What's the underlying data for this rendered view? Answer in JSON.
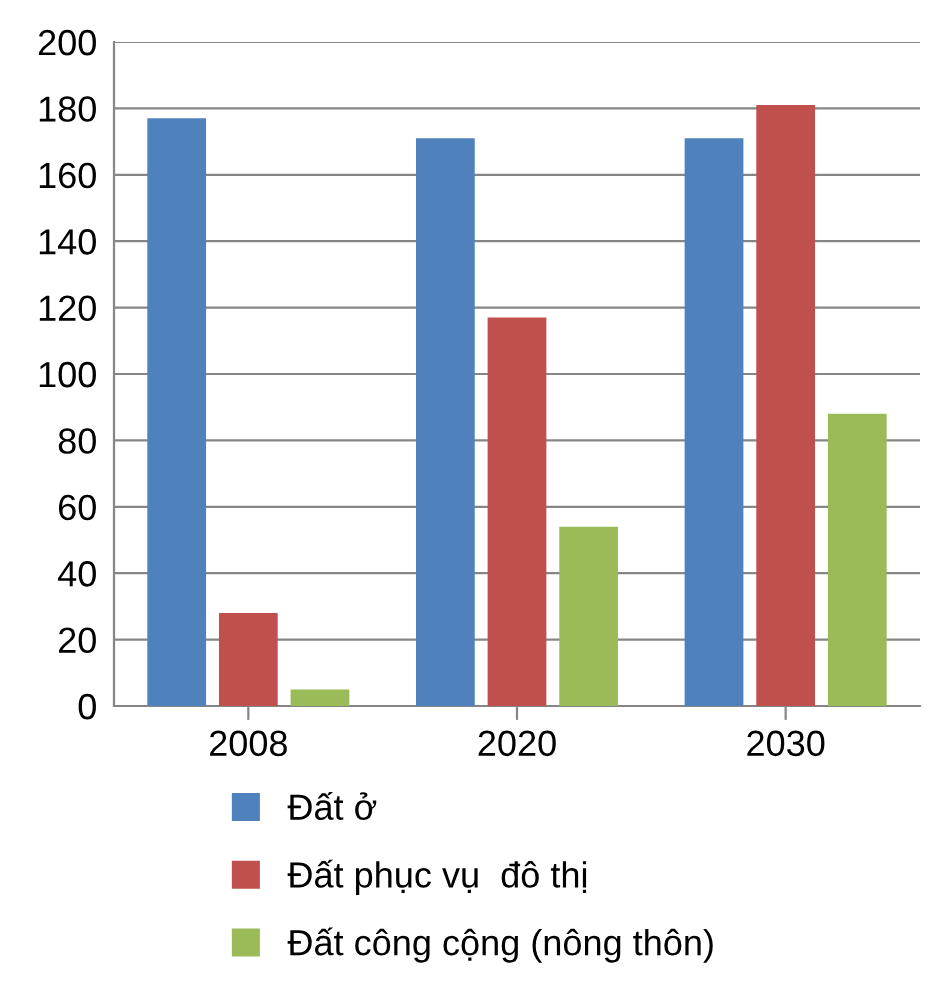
{
  "chart_data": {
    "type": "bar",
    "categories": [
      "2008",
      "2020",
      "2030"
    ],
    "series": [
      {
        "name": "Đất ở",
        "color": "#4f81bd",
        "values": [
          177,
          171,
          171
        ]
      },
      {
        "name": "Đất phục vụ  đô thị",
        "color": "#c0504d",
        "values": [
          28,
          117,
          181
        ]
      },
      {
        "name": "Đất công cộng (nông thôn)",
        "color": "#9bbb59",
        "values": [
          5,
          54,
          88
        ]
      }
    ],
    "ylim": [
      0,
      200
    ],
    "yticks": [
      0,
      20,
      40,
      60,
      80,
      100,
      120,
      140,
      160,
      180,
      200
    ],
    "grid": "y",
    "legend": "bottom"
  }
}
